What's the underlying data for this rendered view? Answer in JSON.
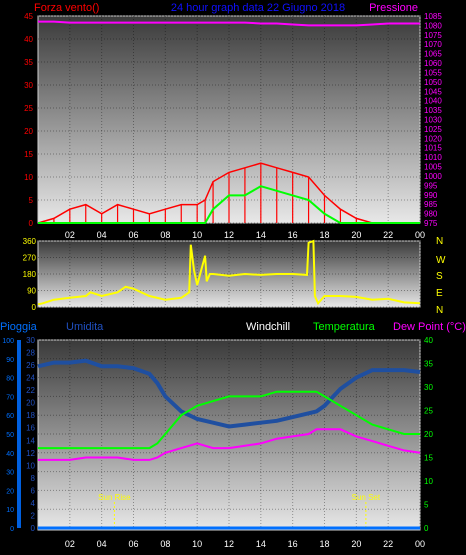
{
  "header": {
    "left_label": "Forza vento()",
    "center_label": "24 hour graph data   22 Giugno 2018",
    "right_label": "Pressione"
  },
  "colors": {
    "wind": "#ff0000",
    "gust": "#00ff00",
    "pressure": "#ff00ff",
    "direction": "#ffff00",
    "humidity": "#1f4fa0",
    "temperature": "#00ff00",
    "dewpoint": "#ff00ff",
    "rain": "#0070ff",
    "title": "#1010ff"
  },
  "x_ticks": [
    "02",
    "04",
    "06",
    "08",
    "10",
    "12",
    "14",
    "16",
    "18",
    "20",
    "22",
    "00"
  ],
  "chart_data": [
    {
      "type": "line",
      "name": "wind-pressure",
      "ylabel_left": "Forza vento()",
      "ylabel_right": "Pressione",
      "ylim_left": [
        0,
        45
      ],
      "ylim_right": [
        975,
        1085
      ],
      "yticks_left": [
        "0",
        "5",
        "10",
        "15",
        "20",
        "25",
        "30",
        "35",
        "40",
        "45"
      ],
      "yticks_right": [
        "975",
        "980",
        "985",
        "990",
        "995",
        "1000",
        "1005",
        "1010",
        "1015",
        "1020",
        "1025",
        "1030",
        "1035",
        "1040",
        "1045",
        "1050",
        "1055",
        "1060",
        "1065",
        "1070",
        "1075",
        "1080",
        "1085"
      ],
      "x_hours": [
        0,
        1,
        2,
        3,
        4,
        5,
        6,
        7,
        8,
        9,
        10,
        10.5,
        11,
        12,
        13,
        14,
        15,
        16,
        17,
        18,
        19,
        20,
        21,
        22,
        23,
        24
      ],
      "series": [
        {
          "role": "wind",
          "axis": "left",
          "values": [
            0,
            1,
            3,
            4,
            2,
            4,
            3,
            2,
            3,
            4,
            4,
            5,
            9,
            11,
            12,
            13,
            12,
            11,
            10,
            6,
            3,
            1,
            0,
            0,
            0,
            0
          ]
        },
        {
          "role": "gust",
          "axis": "left",
          "values": [
            0,
            0,
            0,
            0,
            0,
            0,
            0,
            0,
            0,
            0,
            0,
            0,
            3,
            6,
            6,
            8,
            7,
            6,
            5,
            2,
            0,
            0,
            0,
            0,
            0,
            0
          ]
        },
        {
          "role": "pressure",
          "axis": "right",
          "values": [
            1082,
            1082,
            1081.5,
            1081.5,
            1081.5,
            1081.5,
            1081.5,
            1081.5,
            1081.5,
            1081.5,
            1081.5,
            1081.5,
            1081.5,
            1081.5,
            1081.5,
            1081,
            1081,
            1080.5,
            1080,
            1080,
            1080,
            1080,
            1080.5,
            1081,
            1081,
            1081
          ]
        }
      ]
    },
    {
      "type": "line",
      "name": "wind-direction",
      "ylim_left": [
        0,
        360
      ],
      "yticks_left": [
        "0",
        "90",
        "180",
        "270",
        "360"
      ],
      "yticks_right": [
        "N",
        "W",
        "S",
        "E",
        "N"
      ],
      "x_hours": [
        0,
        0.3,
        1,
        2,
        3,
        3.3,
        4,
        5,
        5.5,
        6,
        7,
        8,
        9,
        9.5,
        9.6,
        9.8,
        10,
        10.5,
        10.6,
        10.8,
        11,
        12,
        13,
        14,
        15,
        16,
        16.9,
        17,
        17.3,
        17.4,
        17.6,
        18,
        19,
        20,
        21,
        22,
        23,
        24
      ],
      "series": [
        {
          "role": "direction",
          "axis": "left",
          "values": [
            15,
            20,
            40,
            50,
            60,
            80,
            60,
            80,
            110,
            100,
            60,
            40,
            50,
            80,
            340,
            200,
            120,
            280,
            140,
            180,
            180,
            170,
            180,
            175,
            180,
            180,
            175,
            350,
            360,
            60,
            20,
            60,
            60,
            55,
            40,
            45,
            25,
            20
          ]
        }
      ]
    },
    {
      "type": "line",
      "name": "temperature-humidity",
      "ylabels": [
        "Pioggia",
        "Umidita",
        "Windchill",
        "Temperatura",
        "Dew Point (°C)"
      ],
      "ylim_humidity": [
        0,
        100
      ],
      "ylim_temperature": [
        0,
        40
      ],
      "yticks_rain": [
        "0",
        "10",
        "20",
        "30",
        "40",
        "50",
        "60",
        "70",
        "80",
        "90",
        "100"
      ],
      "yticks_humidity": [
        "0",
        "2",
        "4",
        "6",
        "8",
        "10",
        "12",
        "14",
        "16",
        "18",
        "20",
        "22",
        "24",
        "26",
        "28",
        "30"
      ],
      "yticks_temperature": [
        "0",
        "5",
        "10",
        "15",
        "20",
        "25",
        "30",
        "35",
        "40"
      ],
      "annotations": [
        {
          "text": "Sun Rise",
          "hour": 4.8
        },
        {
          "text": "Sun Set",
          "hour": 20.6
        }
      ],
      "x_hours": [
        0,
        1,
        2,
        3,
        4,
        5,
        6,
        7,
        7.5,
        8,
        9,
        10,
        11,
        12,
        13,
        14,
        15,
        16,
        17,
        17.5,
        18,
        19,
        20,
        21,
        22,
        23,
        24
      ],
      "series": [
        {
          "role": "humidity",
          "axis": "humidity",
          "values": [
            86,
            88,
            88,
            89,
            86,
            86,
            85,
            82,
            77,
            70,
            62,
            58,
            56,
            54,
            55,
            56,
            57,
            59,
            61,
            62,
            65,
            74,
            80,
            84,
            84,
            84,
            83
          ]
        },
        {
          "role": "temperature",
          "axis": "temperature",
          "values": [
            17,
            17,
            17,
            17,
            17,
            17,
            17,
            17,
            18,
            20,
            24,
            26,
            27,
            28,
            28,
            28,
            29,
            29,
            29,
            29,
            28,
            26,
            24,
            22,
            21,
            20,
            20
          ]
        },
        {
          "role": "dewpoint",
          "axis": "temperature",
          "values": [
            14.5,
            14.5,
            14.5,
            15,
            15,
            15,
            14.5,
            14.5,
            15,
            16,
            17,
            18,
            17,
            17,
            17.5,
            18,
            19,
            19.5,
            20,
            21,
            21,
            21,
            19.5,
            18.5,
            17.5,
            16.5,
            16
          ]
        },
        {
          "role": "rain",
          "axis": "humidity",
          "values": [
            0,
            0,
            0,
            0,
            0,
            0,
            0,
            0,
            0,
            0,
            0,
            0,
            0,
            0,
            0,
            0,
            0,
            0,
            0,
            0,
            0,
            0,
            0,
            0,
            0,
            0,
            0
          ]
        }
      ]
    }
  ]
}
